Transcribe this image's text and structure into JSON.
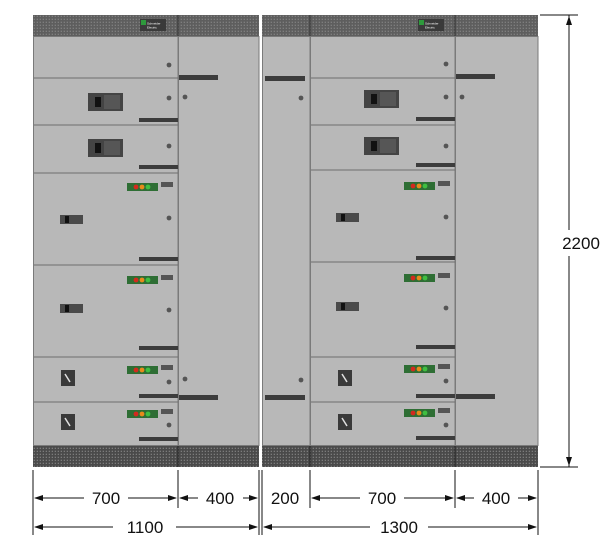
{
  "colors": {
    "panel": "#b8b8b8",
    "panel_edge": "#7a7a7a",
    "plinth": "#4a4a4a",
    "plinth_holes": "#7c7c7c",
    "top_band": "#6a6a6a",
    "handle": "#3c3c3c",
    "brand_green": "#2e9a3c",
    "led_red": "#d32a1e",
    "led_orange": "#e88a1a",
    "led_green": "#3fbf40",
    "dim_line": "#111111"
  },
  "logo": {
    "brand": "Schneider",
    "sub": "Electric"
  },
  "dimensions": {
    "height": "2200",
    "left_sections": [
      "700",
      "400"
    ],
    "middle_section": "200",
    "right_sections": [
      "700",
      "400"
    ],
    "left_total": "1100",
    "right_total": "1300"
  },
  "icons": {
    "breaker": "air-circuit-breaker-icon",
    "switch": "rotary-switch-icon",
    "indicator": "indicator-lights-icon"
  }
}
